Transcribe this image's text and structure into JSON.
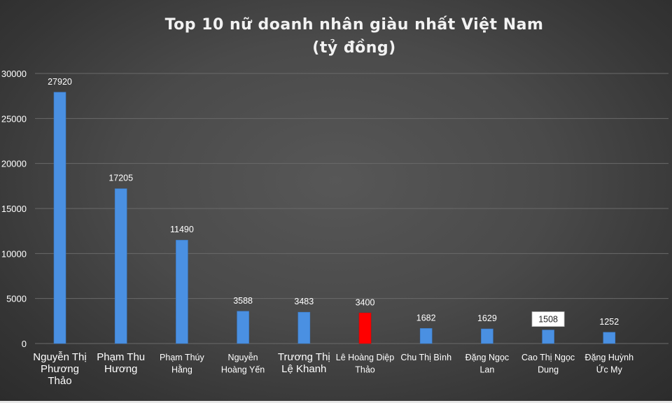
{
  "chart_data": {
    "type": "bar",
    "title_lines": [
      "Top 10 nữ doanh nhân giàu nhất Việt Nam",
      "(tỷ đồng)"
    ],
    "xlabel": "",
    "ylabel": "",
    "ylim": [
      0,
      30000
    ],
    "yticks": [
      0,
      5000,
      10000,
      15000,
      20000,
      25000,
      30000
    ],
    "grid": true,
    "legend": "none",
    "categories": [
      [
        "Nguyễn Thị",
        "Phương",
        "Thảo"
      ],
      [
        "Phạm Thu",
        "Hương"
      ],
      [
        "Phạm Thúy",
        "Hằng"
      ],
      [
        "Nguyễn",
        "Hoàng Yến"
      ],
      [
        "Trương Thị",
        "Lệ Khanh"
      ],
      [
        "Lê Hoàng Diệp",
        "Thảo"
      ],
      [
        "Chu Thị Bình"
      ],
      [
        "Đặng Ngọc",
        "Lan"
      ],
      [
        "Cao Thị Ngọc",
        "Dung"
      ],
      [
        "Đặng Huỳnh",
        "Ức My"
      ]
    ],
    "category_label_sizes": [
      15,
      15,
      12.5,
      12.5,
      15,
      12.5,
      12.5,
      12.5,
      12.5,
      12.5
    ],
    "values": [
      27920,
      17205,
      11490,
      3588,
      3483,
      3400,
      1682,
      1629,
      1508,
      1252
    ],
    "data_labels": [
      "27920",
      "17205",
      "11490",
      "3588",
      "3483",
      "3400",
      "1682",
      "1629",
      "1508",
      "1252"
    ],
    "boxed_label_index": 8,
    "bar_colors": [
      "#4a90e2",
      "#4a90e2",
      "#4a90e2",
      "#4a90e2",
      "#4a90e2",
      "#ff0000",
      "#4a90e2",
      "#4a90e2",
      "#4a90e2",
      "#4a90e2"
    ],
    "colors": {
      "bar": "#4a90e2",
      "highlight": "#ff0000",
      "text": "#ffffff"
    }
  }
}
